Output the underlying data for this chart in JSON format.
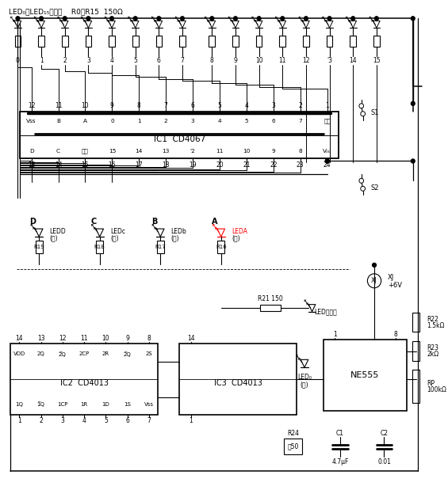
{
  "bg_color": "#ffffff",
  "top_label": "LED₀～LED₁₅（红）    R0～R15  150Ω",
  "ic1_label": "IC1  CD4067",
  "ic2_label": "IC2  CD4013",
  "ic3_label": "IC3  CD4013",
  "ne555_label": "NE555",
  "ic1_top_pins": [
    "12",
    "11",
    "10",
    "9",
    "8",
    "7",
    "6",
    "5",
    "4",
    "3",
    "2",
    "1"
  ],
  "ic1_top_labels": [
    "Vss",
    "B",
    "A",
    "0",
    "1",
    "2",
    "3",
    "4",
    "5",
    "6",
    "7",
    "公共"
  ],
  "ic1_bot_pins": [
    "13",
    "14",
    "15",
    "16",
    "17",
    "18",
    "19",
    "20",
    "21",
    "22",
    "23",
    "24"
  ],
  "ic1_bot_labels": [
    "D",
    "C",
    "禁止",
    "15",
    "14",
    "13",
    "'2",
    "11",
    "10",
    "9",
    "8",
    "V₀₀"
  ],
  "led_labels": [
    "0",
    "1",
    "2",
    "3",
    "4",
    "5",
    "6",
    "7",
    "8",
    "9",
    "10",
    "11",
    "12",
    "'3",
    "14",
    "15"
  ],
  "ic2_top_pins": [
    "14",
    "13",
    "12",
    "11",
    "10",
    "9",
    "8"
  ],
  "ic2_top_labels": [
    "V₀₀",
    "2Q",
    "2̅Q̅",
    "2CP",
    "2R",
    "2̅Q̅",
    "2S"
  ],
  "ic2_bot_pins": [
    "1",
    "2",
    "3",
    "4",
    "5",
    "6",
    "7"
  ],
  "ic2_bot_labels": [
    "1Q",
    "1̅Q̅",
    "1CP",
    "1R",
    "1D",
    "1S",
    "Vss"
  ]
}
